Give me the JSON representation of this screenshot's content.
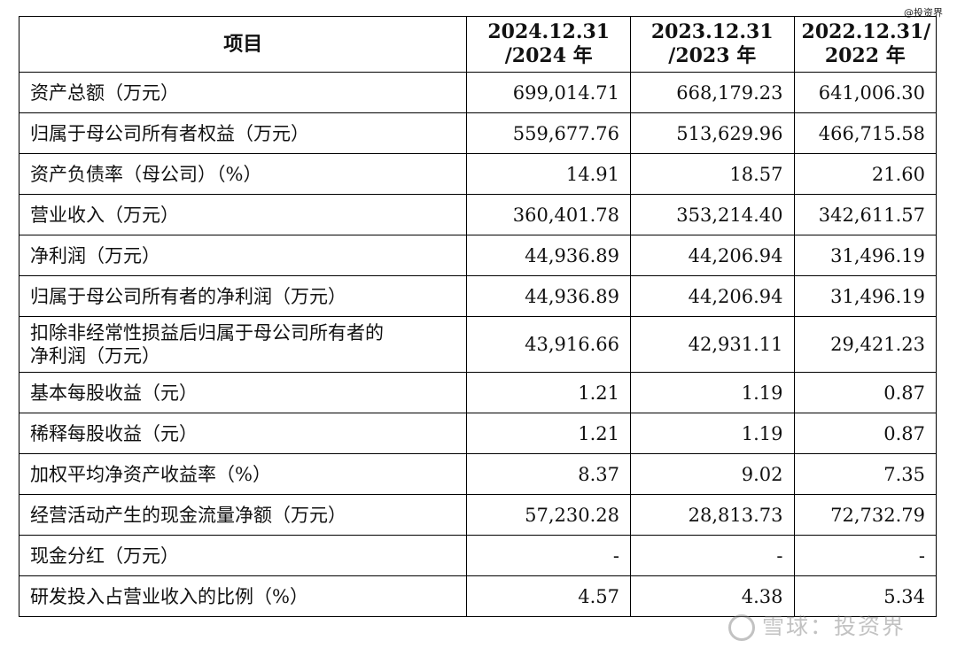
{
  "watermark_top": "@投资界",
  "watermark_bottom": "雪球：投资界",
  "header": {
    "item": "项目",
    "col1": [
      "2024.12.31",
      "/2024 年"
    ],
    "col2": [
      "2023.12.31",
      "/2023 年"
    ],
    "col3": [
      "2022.12.31/",
      "2022 年"
    ]
  },
  "rows": [
    {
      "label": "资产总额（万元）",
      "v": [
        "699,014.71",
        "668,179.23",
        "641,006.30"
      ]
    },
    {
      "label": "归属于母公司所有者权益（万元）",
      "v": [
        "559,677.76",
        "513,629.96",
        "466,715.58"
      ]
    },
    {
      "label": "资产负债率（母公司）（%）",
      "v": [
        "14.91",
        "18.57",
        "21.60"
      ]
    },
    {
      "label": "营业收入（万元）",
      "v": [
        "360,401.78",
        "353,214.40",
        "342,611.57"
      ]
    },
    {
      "label": "净利润（万元）",
      "v": [
        "44,936.89",
        "44,206.94",
        "31,496.19"
      ]
    },
    {
      "label": "归属于母公司所有者的净利润（万元）",
      "v": [
        "44,936.89",
        "44,206.94",
        "31,496.19"
      ]
    },
    {
      "label": [
        "扣除非经常性损益后归属于母公司所有者的",
        "净利润（万元）"
      ],
      "v": [
        "43,916.66",
        "42,931.11",
        "29,421.23"
      ]
    },
    {
      "label": "基本每股收益（元）",
      "v": [
        "1.21",
        "1.19",
        "0.87"
      ]
    },
    {
      "label": "稀释每股收益（元）",
      "v": [
        "1.21",
        "1.19",
        "0.87"
      ]
    },
    {
      "label": "加权平均净资产收益率（%）",
      "v": [
        "8.37",
        "9.02",
        "7.35"
      ]
    },
    {
      "label": "经营活动产生的现金流量净额（万元）",
      "v": [
        "57,230.28",
        "28,813.73",
        "72,732.79"
      ]
    },
    {
      "label": "现金分红（万元）",
      "v": [
        "-",
        "-",
        "-"
      ]
    },
    {
      "label": "研发投入占营业收入的比例（%）",
      "v": [
        "4.57",
        "4.38",
        "5.34"
      ]
    }
  ]
}
